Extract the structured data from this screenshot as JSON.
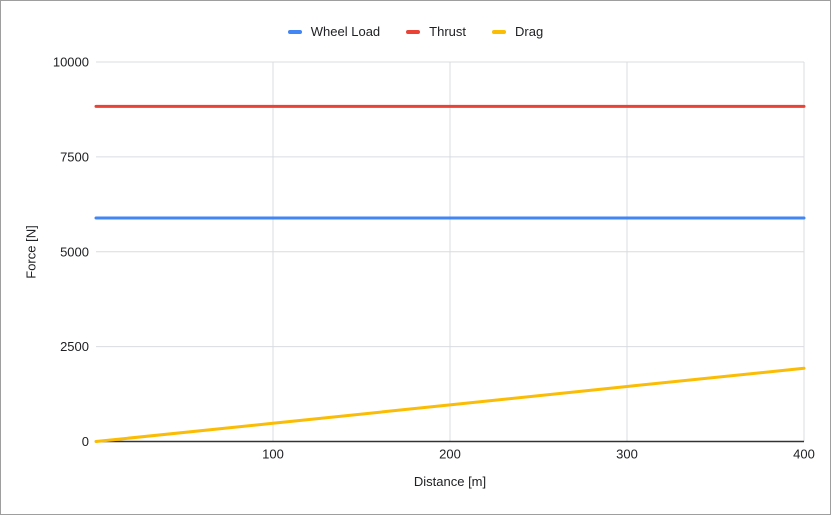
{
  "frame": {
    "background": "#ffffff",
    "border_color": "#9e9e9e"
  },
  "legend": {
    "position": "top-center",
    "items": [
      {
        "label": "Wheel Load",
        "color": "#4285F4"
      },
      {
        "label": "Thrust",
        "color": "#EA4335"
      },
      {
        "label": "Drag",
        "color": "#FBBC04"
      }
    ]
  },
  "chart_data": {
    "type": "line",
    "x": [
      0,
      100,
      200,
      300,
      400
    ],
    "series": [
      {
        "name": "Wheel Load",
        "color": "#4285F4",
        "values": [
          5890,
          5890,
          5890,
          5890,
          5890
        ]
      },
      {
        "name": "Thrust",
        "color": "#EA4335",
        "values": [
          8830,
          8830,
          8830,
          8830,
          8830
        ]
      },
      {
        "name": "Drag",
        "color": "#FBBC04",
        "values": [
          0,
          480,
          965,
          1450,
          1930
        ]
      }
    ],
    "xlabel": "Distance [m]",
    "ylabel": "Force [N]",
    "xlim": [
      0,
      400
    ],
    "ylim": [
      0,
      10000
    ],
    "x_ticks": [
      100,
      200,
      300,
      400
    ],
    "y_ticks": [
      0,
      2500,
      5000,
      7500,
      10000
    ],
    "grid": true,
    "legend_position": "top",
    "colors": {
      "gridline": "#dadce0",
      "axis": "#333333",
      "tick_text": "#202124"
    }
  }
}
